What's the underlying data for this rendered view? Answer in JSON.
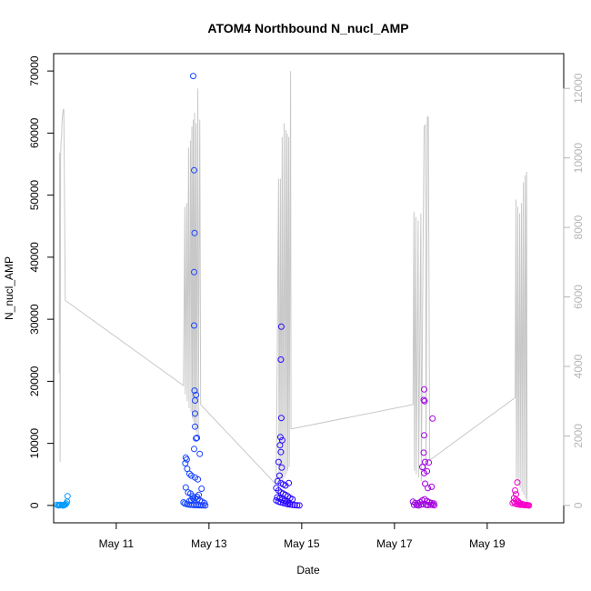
{
  "chart_data": {
    "type": "scatter",
    "title": "ATOM4 Northbound N_nucl_AMP",
    "xlabel": "Date",
    "ylabel": "N_nucl_AMP",
    "x_unit": "day of May",
    "xlim": [
      9.65,
      20.65
    ],
    "ylim": [
      -2800,
      72800
    ],
    "y2lim": [
      -500,
      13000
    ],
    "x_ticks": [
      {
        "value": 11,
        "label": "May 11"
      },
      {
        "value": 13,
        "label": "May 13"
      },
      {
        "value": 15,
        "label": "May 15"
      },
      {
        "value": 17,
        "label": "May 17"
      },
      {
        "value": 19,
        "label": "May 19"
      }
    ],
    "y_ticks": [
      {
        "value": 0,
        "label": "0"
      },
      {
        "value": 10000,
        "label": "10000"
      },
      {
        "value": 20000,
        "label": "20000"
      },
      {
        "value": 30000,
        "label": "30000"
      },
      {
        "value": 40000,
        "label": "40000"
      },
      {
        "value": 50000,
        "label": "50000"
      },
      {
        "value": 60000,
        "label": "60000"
      },
      {
        "value": 70000,
        "label": "70000"
      }
    ],
    "y2_ticks": [
      {
        "value": 0,
        "label": "0"
      },
      {
        "value": 2000,
        "label": "2000"
      },
      {
        "value": 4000,
        "label": "4000"
      },
      {
        "value": 6000,
        "label": "6000"
      },
      {
        "value": 8000,
        "label": "8000"
      },
      {
        "value": 10000,
        "label": "10000"
      },
      {
        "value": 12000,
        "label": "12000"
      }
    ],
    "line_color": "#c8c8c8",
    "point_color_start": "#00a0ff",
    "point_color_end": "#ff00c8",
    "line_series": {
      "axis": "right",
      "points": [
        [
          9.77,
          3800
        ],
        [
          9.78,
          10150
        ],
        [
          9.79,
          1250
        ],
        [
          9.8,
          10100
        ],
        [
          9.81,
          10500
        ],
        [
          9.82,
          10600
        ],
        [
          9.83,
          11000
        ],
        [
          9.84,
          11200
        ],
        [
          9.85,
          11300
        ],
        [
          9.86,
          11400
        ],
        [
          9.87,
          11400
        ],
        [
          9.9,
          5900
        ],
        [
          12.45,
          3450
        ],
        [
          12.48,
          8600
        ],
        [
          12.49,
          3200
        ],
        [
          12.52,
          8700
        ],
        [
          12.53,
          3000
        ],
        [
          12.56,
          10300
        ],
        [
          12.57,
          2800
        ],
        [
          12.6,
          10500
        ],
        [
          12.61,
          2700
        ],
        [
          12.63,
          10900
        ],
        [
          12.64,
          2500
        ],
        [
          12.66,
          11100
        ],
        [
          12.67,
          2400
        ],
        [
          12.69,
          11300
        ],
        [
          12.7,
          2200
        ],
        [
          12.72,
          11000
        ],
        [
          12.73,
          2100
        ],
        [
          12.76,
          12000
        ],
        [
          12.77,
          2000
        ],
        [
          12.8,
          11100
        ],
        [
          12.82,
          2900
        ],
        [
          14.45,
          600
        ],
        [
          14.5,
          9400
        ],
        [
          14.51,
          700
        ],
        [
          14.54,
          9400
        ],
        [
          14.55,
          800
        ],
        [
          14.58,
          10600
        ],
        [
          14.59,
          700
        ],
        [
          14.62,
          11000
        ],
        [
          14.63,
          800
        ],
        [
          14.66,
          10800
        ],
        [
          14.67,
          900
        ],
        [
          14.69,
          10700
        ],
        [
          14.7,
          1000
        ],
        [
          14.72,
          10600
        ],
        [
          14.73,
          1100
        ],
        [
          14.76,
          12500
        ],
        [
          14.77,
          2200
        ],
        [
          17.4,
          2900
        ],
        [
          17.42,
          8450
        ],
        [
          17.43,
          1000
        ],
        [
          17.46,
          8300
        ],
        [
          17.47,
          900
        ],
        [
          17.51,
          8200
        ],
        [
          17.52,
          800
        ],
        [
          17.57,
          8400
        ],
        [
          17.58,
          700
        ],
        [
          17.62,
          8100
        ],
        [
          17.64,
          10900
        ],
        [
          17.67,
          10950
        ],
        [
          17.68,
          900
        ],
        [
          17.71,
          11200
        ],
        [
          17.73,
          11150
        ],
        [
          17.76,
          1300
        ],
        [
          19.6,
          3100
        ],
        [
          19.62,
          8800
        ],
        [
          19.63,
          700
        ],
        [
          19.66,
          8600
        ],
        [
          19.67,
          600
        ],
        [
          19.7,
          8400
        ],
        [
          19.71,
          500
        ],
        [
          19.74,
          8700
        ],
        [
          19.75,
          400
        ],
        [
          19.78,
          9300
        ],
        [
          19.79,
          300
        ],
        [
          19.82,
          9500
        ],
        [
          19.83,
          200
        ],
        [
          19.85,
          9600
        ],
        [
          19.86,
          100
        ]
      ]
    },
    "points": [
      [
        9.72,
        100
      ],
      [
        9.75,
        20
      ],
      [
        9.78,
        60
      ],
      [
        9.8,
        120
      ],
      [
        9.83,
        40
      ],
      [
        9.85,
        0
      ],
      [
        9.88,
        80
      ],
      [
        9.9,
        150
      ],
      [
        9.92,
        300
      ],
      [
        9.94,
        600
      ],
      [
        9.95,
        1500
      ],
      [
        9.87,
        30
      ],
      [
        9.76,
        10
      ],
      [
        12.66,
        69200
      ],
      [
        12.68,
        54000
      ],
      [
        12.69,
        43900
      ],
      [
        12.68,
        37600
      ],
      [
        12.68,
        29000
      ],
      [
        12.69,
        18500
      ],
      [
        12.72,
        17800
      ],
      [
        12.7,
        16900
      ],
      [
        12.7,
        14800
      ],
      [
        12.7,
        12700
      ],
      [
        12.72,
        10800
      ],
      [
        12.74,
        10900
      ],
      [
        12.68,
        9100
      ],
      [
        12.8,
        8300
      ],
      [
        12.5,
        7700
      ],
      [
        12.52,
        7400
      ],
      [
        12.49,
        6800
      ],
      [
        12.53,
        5900
      ],
      [
        12.58,
        5100
      ],
      [
        12.62,
        4800
      ],
      [
        12.7,
        4500
      ],
      [
        12.76,
        4200
      ],
      [
        12.84,
        2700
      ],
      [
        12.5,
        2900
      ],
      [
        12.55,
        2100
      ],
      [
        12.6,
        1900
      ],
      [
        12.65,
        1500
      ],
      [
        12.7,
        1200
      ],
      [
        12.75,
        1000
      ],
      [
        12.8,
        800
      ],
      [
        12.85,
        600
      ],
      [
        12.9,
        400
      ],
      [
        12.48,
        300
      ],
      [
        12.52,
        200
      ],
      [
        12.56,
        150
      ],
      [
        12.6,
        100
      ],
      [
        12.64,
        80
      ],
      [
        12.68,
        60
      ],
      [
        12.72,
        50
      ],
      [
        12.76,
        40
      ],
      [
        12.8,
        30
      ],
      [
        12.84,
        20
      ],
      [
        12.88,
        10
      ],
      [
        12.92,
        0
      ],
      [
        12.45,
        500
      ],
      [
        12.58,
        700
      ],
      [
        12.62,
        900
      ],
      [
        12.66,
        1100
      ],
      [
        12.74,
        1400
      ],
      [
        12.78,
        1700
      ],
      [
        14.56,
        28800
      ],
      [
        14.55,
        23500
      ],
      [
        14.56,
        14100
      ],
      [
        14.54,
        11000
      ],
      [
        14.58,
        10500
      ],
      [
        14.53,
        9700
      ],
      [
        14.55,
        8600
      ],
      [
        14.5,
        7000
      ],
      [
        14.57,
        6100
      ],
      [
        14.52,
        4800
      ],
      [
        14.48,
        3900
      ],
      [
        14.55,
        3600
      ],
      [
        14.6,
        3400
      ],
      [
        14.65,
        3200
      ],
      [
        14.72,
        3600
      ],
      [
        14.45,
        2800
      ],
      [
        14.5,
        2400
      ],
      [
        14.55,
        2100
      ],
      [
        14.6,
        1900
      ],
      [
        14.65,
        1700
      ],
      [
        14.7,
        1500
      ],
      [
        14.75,
        1200
      ],
      [
        14.8,
        1000
      ],
      [
        14.45,
        800
      ],
      [
        14.5,
        600
      ],
      [
        14.55,
        500
      ],
      [
        14.6,
        400
      ],
      [
        14.65,
        300
      ],
      [
        14.7,
        200
      ],
      [
        14.75,
        150
      ],
      [
        14.8,
        100
      ],
      [
        14.85,
        50
      ],
      [
        14.9,
        20
      ],
      [
        14.95,
        0
      ],
      [
        14.47,
        1300
      ],
      [
        14.52,
        1100
      ],
      [
        14.58,
        900
      ],
      [
        14.63,
        700
      ],
      [
        14.68,
        600
      ],
      [
        14.73,
        400
      ],
      [
        17.64,
        18700
      ],
      [
        17.63,
        17000
      ],
      [
        17.65,
        16800
      ],
      [
        17.82,
        14000
      ],
      [
        17.64,
        11300
      ],
      [
        17.63,
        8500
      ],
      [
        17.66,
        7000
      ],
      [
        17.6,
        6200
      ],
      [
        17.7,
        5500
      ],
      [
        17.74,
        6900
      ],
      [
        17.64,
        5200
      ],
      [
        17.66,
        3500
      ],
      [
        17.72,
        2800
      ],
      [
        17.8,
        3000
      ],
      [
        17.4,
        600
      ],
      [
        17.45,
        400
      ],
      [
        17.5,
        300
      ],
      [
        17.55,
        500
      ],
      [
        17.6,
        800
      ],
      [
        17.65,
        1000
      ],
      [
        17.7,
        700
      ],
      [
        17.75,
        500
      ],
      [
        17.8,
        400
      ],
      [
        17.85,
        300
      ],
      [
        17.42,
        100
      ],
      [
        17.48,
        50
      ],
      [
        17.52,
        0
      ],
      [
        17.58,
        150
      ],
      [
        17.62,
        200
      ],
      [
        17.68,
        100
      ],
      [
        17.72,
        50
      ],
      [
        17.78,
        120
      ],
      [
        17.82,
        80
      ],
      [
        17.86,
        30
      ],
      [
        19.65,
        3700
      ],
      [
        19.6,
        2400
      ],
      [
        19.62,
        1800
      ],
      [
        19.58,
        1200
      ],
      [
        19.62,
        900
      ],
      [
        19.66,
        700
      ],
      [
        19.68,
        500
      ],
      [
        19.55,
        400
      ],
      [
        19.6,
        300
      ],
      [
        19.64,
        200
      ],
      [
        19.68,
        150
      ],
      [
        19.72,
        100
      ],
      [
        19.76,
        80
      ],
      [
        19.8,
        60
      ],
      [
        19.84,
        40
      ],
      [
        19.88,
        20
      ],
      [
        19.9,
        0
      ],
      [
        19.58,
        600
      ],
      [
        19.7,
        350
      ],
      [
        19.74,
        250
      ],
      [
        19.78,
        150
      ],
      [
        19.82,
        100
      ],
      [
        19.86,
        50
      ]
    ]
  }
}
